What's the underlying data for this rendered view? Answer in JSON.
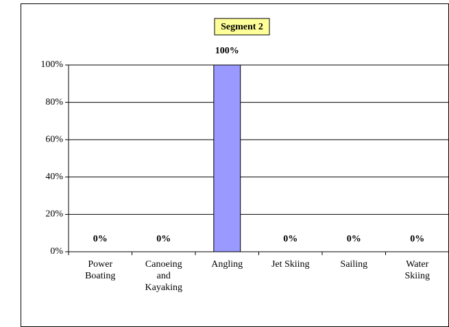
{
  "chart_data": {
    "type": "bar",
    "title": "Segment 2",
    "categories": [
      "Power Boating",
      "Canoeing and Kayaking",
      "Angling",
      "Jet Skiing",
      "Sailing",
      "Water Skiing"
    ],
    "values": [
      0,
      0,
      100,
      0,
      0,
      0
    ],
    "value_labels": [
      "0%",
      "0%",
      "100%",
      "0%",
      "0%",
      "0%"
    ],
    "color": "#9999ff",
    "ylim": [
      0,
      100
    ],
    "yticks": [
      {
        "value": 0,
        "label": "0%"
      },
      {
        "value": 20,
        "label": "20%"
      },
      {
        "value": 40,
        "label": "40%"
      },
      {
        "value": 60,
        "label": "60%"
      },
      {
        "value": 80,
        "label": "80%"
      },
      {
        "value": 100,
        "label": "100%"
      }
    ],
    "grid": true
  }
}
